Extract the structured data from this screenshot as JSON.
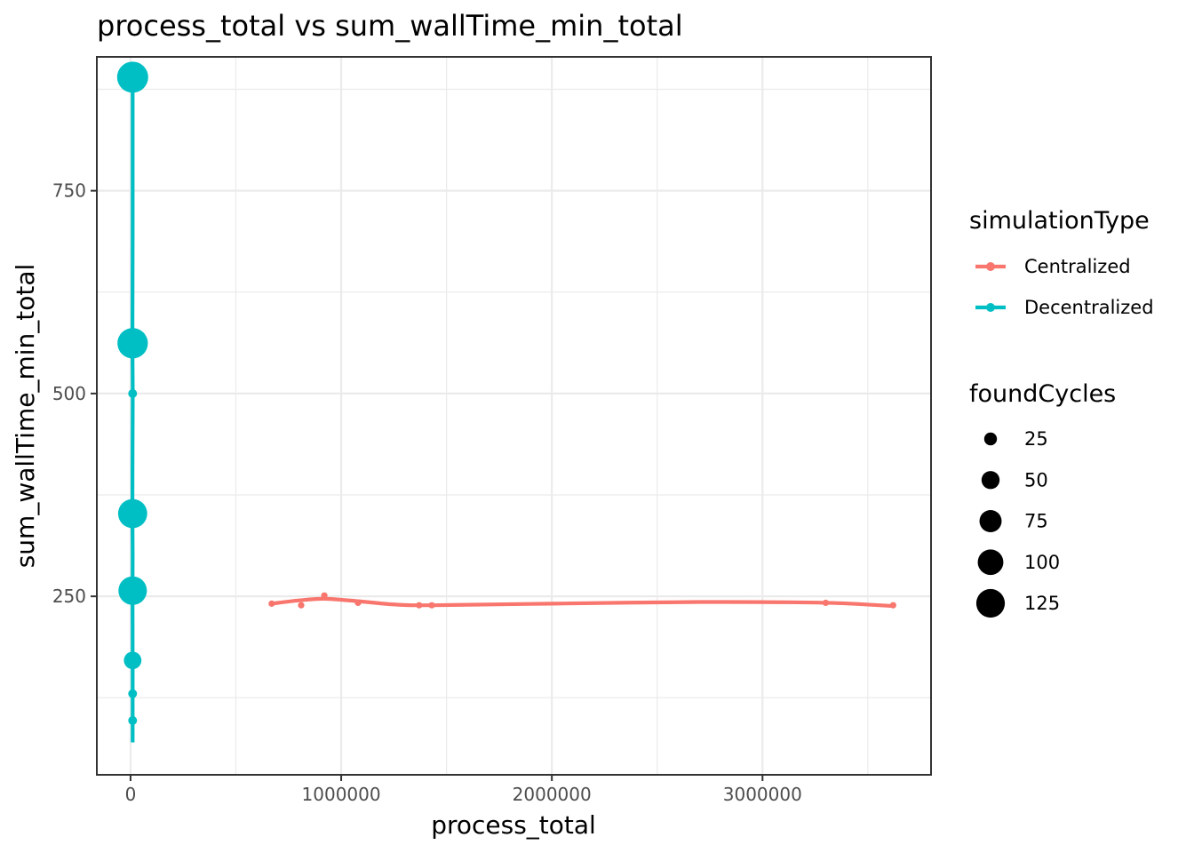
{
  "chart_data": {
    "type": "scatter",
    "title": "process_total  vs  sum_wallTime_min_total",
    "xlabel": "process_total",
    "ylabel": "sum_wallTime_min_total",
    "xlim": [
      -160000,
      3800000
    ],
    "ylim": [
      30,
      915
    ],
    "x_ticks": [
      0,
      1000000,
      2000000,
      3000000
    ],
    "x_tick_labels": [
      "0",
      "1000000",
      "2000000",
      "3000000"
    ],
    "y_ticks": [
      250,
      500,
      750
    ],
    "y_tick_labels": [
      "250",
      "500",
      "750"
    ],
    "grid": true,
    "legend_position": "right",
    "color_legend": {
      "title": "simulationType",
      "items": [
        {
          "label": "Centralized",
          "color": "#F8766D"
        },
        {
          "label": "Decentralized",
          "color": "#00BFC4"
        }
      ]
    },
    "size_legend": {
      "title": "foundCycles",
      "items": [
        {
          "label": "25",
          "value": 25
        },
        {
          "label": "50",
          "value": 50
        },
        {
          "label": "75",
          "value": 75
        },
        {
          "label": "100",
          "value": 100
        },
        {
          "label": "125",
          "value": 125
        }
      ]
    },
    "series": [
      {
        "name": "Centralized",
        "color": "#F8766D",
        "points": [
          {
            "x": 670000,
            "y": 241,
            "size": 2
          },
          {
            "x": 810000,
            "y": 239,
            "size": 2
          },
          {
            "x": 920000,
            "y": 251,
            "size": 2
          },
          {
            "x": 1080000,
            "y": 242,
            "size": 2
          },
          {
            "x": 1370000,
            "y": 239,
            "size": 2
          },
          {
            "x": 1430000,
            "y": 239,
            "size": 2
          },
          {
            "x": 3300000,
            "y": 242,
            "size": 2
          },
          {
            "x": 3620000,
            "y": 239,
            "size": 2
          }
        ],
        "smooth": [
          [
            670000,
            241
          ],
          [
            800000,
            245
          ],
          [
            920000,
            247
          ],
          [
            1080000,
            244
          ],
          [
            1250000,
            240
          ],
          [
            1430000,
            239
          ],
          [
            2000000,
            241
          ],
          [
            2700000,
            243
          ],
          [
            3300000,
            242
          ],
          [
            3620000,
            238
          ]
        ]
      },
      {
        "name": "Decentralized",
        "color": "#00BFC4",
        "points": [
          {
            "x": 10000,
            "y": 890,
            "size": 125
          },
          {
            "x": 10000,
            "y": 562,
            "size": 120
          },
          {
            "x": 10000,
            "y": 500,
            "size": 10
          },
          {
            "x": 10000,
            "y": 352,
            "size": 110
          },
          {
            "x": 10000,
            "y": 257,
            "size": 105
          },
          {
            "x": 10000,
            "y": 171,
            "size": 40
          },
          {
            "x": 10000,
            "y": 130,
            "size": 10
          },
          {
            "x": 10000,
            "y": 97,
            "size": 10
          }
        ],
        "smooth": [
          [
            10000,
            890
          ],
          [
            10000,
            700
          ],
          [
            9000,
            562
          ],
          [
            10500,
            500
          ],
          [
            9500,
            430
          ],
          [
            9000,
            352
          ],
          [
            10000,
            300
          ],
          [
            9500,
            257
          ],
          [
            10000,
            171
          ],
          [
            10000,
            130
          ],
          [
            10000,
            70
          ]
        ]
      }
    ]
  }
}
